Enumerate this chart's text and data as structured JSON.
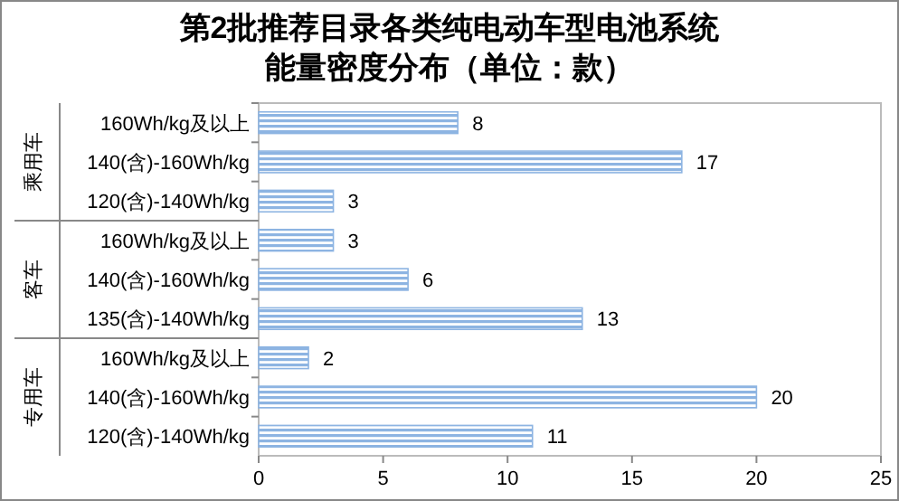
{
  "chart_data": {
    "type": "bar",
    "orientation": "horizontal",
    "title": "第2批推荐目录各类纯电动车型电池系统能量密度分布（单位：款）",
    "categories": [
      "160Wh/kg及以上",
      "140(含)-160Wh/kg",
      "120(含)-140Wh/kg",
      "160Wh/kg及以上",
      "140(含)-160Wh/kg",
      "135(含)-140Wh/kg",
      "160Wh/kg及以上",
      "140(含)-160Wh/kg",
      "120(含)-140Wh/kg"
    ],
    "values": [
      8,
      17,
      3,
      3,
      6,
      13,
      2,
      20,
      11
    ],
    "color": "#8db4e2",
    "xlim": [
      0,
      25
    ],
    "xticks": [
      0,
      5,
      10,
      15,
      20,
      25
    ],
    "data_labels": true,
    "grid": false,
    "annotations": [
      "乘用车",
      "客车",
      "专用车"
    ]
  }
}
